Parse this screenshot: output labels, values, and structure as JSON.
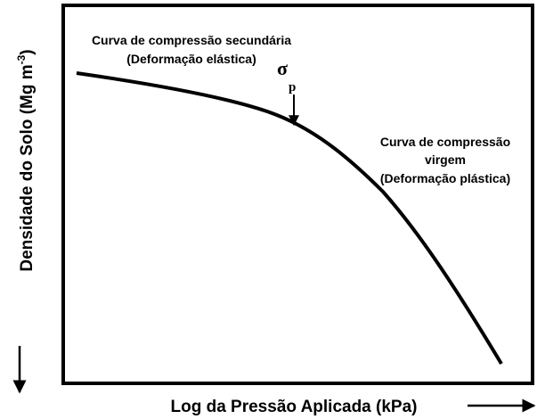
{
  "y_axis": {
    "label": "Densidade do Solo (Mg m",
    "superscript": "-3",
    "suffix": ")"
  },
  "x_axis": {
    "label": "Log da Pressão Aplicada (kPa)"
  },
  "annotations": {
    "secondary": [
      "Curva de compressão secundária",
      "(Deformação elástica)"
    ],
    "sigma": "σ",
    "sigma_subscript": "p",
    "virgin": [
      "Curva de compressão",
      "virgem",
      "(Deformação plástica)"
    ]
  }
}
